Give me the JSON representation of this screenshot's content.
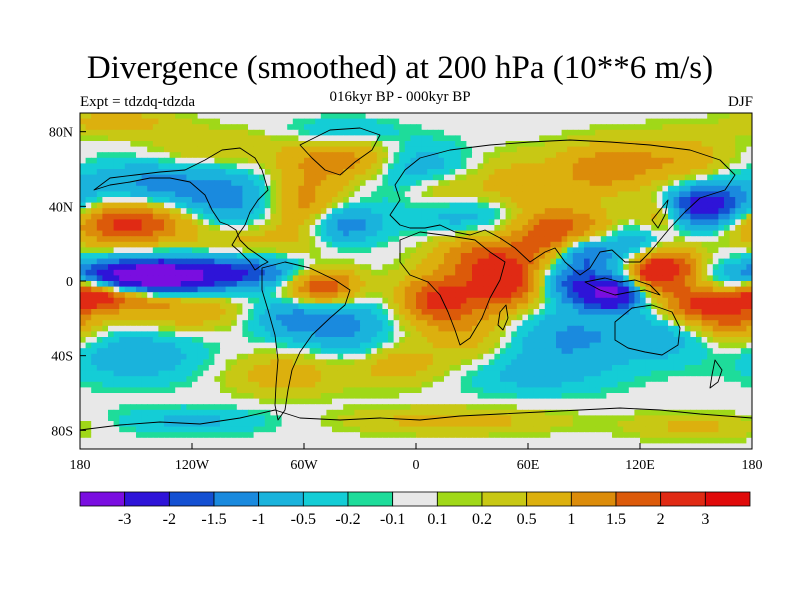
{
  "chart_data": {
    "type": "heatmap",
    "title": "Divergence (smoothed) at 200 hPa (10**6 m/s)",
    "subtitle": "016kyr BP - 000kyr BP",
    "left_label": "Expt = tdzdq-tdzda",
    "right_label": "DJF",
    "x_axis": {
      "range": [
        -180,
        180
      ],
      "ticks": [
        {
          "value": -180,
          "label": "180"
        },
        {
          "value": -120,
          "label": "120W"
        },
        {
          "value": -60,
          "label": "60W"
        },
        {
          "value": 0,
          "label": "0"
        },
        {
          "value": 60,
          "label": "60E"
        },
        {
          "value": 120,
          "label": "120E"
        },
        {
          "value": 180,
          "label": "180"
        }
      ]
    },
    "y_axis": {
      "range": [
        -90,
        90
      ],
      "ticks": [
        {
          "value": 80,
          "label": "80N"
        },
        {
          "value": 40,
          "label": "40N"
        },
        {
          "value": 0,
          "label": "0"
        },
        {
          "value": -40,
          "label": "40S"
        },
        {
          "value": -80,
          "label": "80S"
        }
      ]
    },
    "colorbar": {
      "colors": [
        "#7a0ee0",
        "#2e14d8",
        "#1450d2",
        "#1a8ade",
        "#1ab3dc",
        "#14cdd6",
        "#1edc9a",
        "#e8e8e8",
        "#a0d818",
        "#c8c814",
        "#dcb00e",
        "#dc8c0a",
        "#dc5a0a",
        "#e02a14",
        "#e00a0a"
      ],
      "labels": [
        "-3",
        "-2",
        "-1.5",
        "-1",
        "-0.5",
        "-0.2",
        "-0.1",
        "0.1",
        "0.2",
        "0.5",
        "1",
        "1.5",
        "2",
        "3"
      ]
    },
    "features": [
      {
        "lon": -150,
        "lat": 0,
        "value": -3.2,
        "sx": 28,
        "sy": 6
      },
      {
        "lon": -135,
        "lat": 5,
        "value": -2.0,
        "sx": 30,
        "sy": 7
      },
      {
        "lon": -85,
        "lat": 5,
        "value": -1.2,
        "sx": 22,
        "sy": 6
      },
      {
        "lon": -160,
        "lat": -7,
        "value": 2.2,
        "sx": 18,
        "sy": 6
      },
      {
        "lon": -175,
        "lat": -5,
        "value": 1.8,
        "sx": 10,
        "sy": 6
      },
      {
        "lon": -125,
        "lat": -15,
        "value": 1.0,
        "sx": 22,
        "sy": 8
      },
      {
        "lon": -155,
        "lat": 32,
        "value": 2.4,
        "sx": 25,
        "sy": 9
      },
      {
        "lon": -140,
        "lat": 50,
        "value": -1.3,
        "sx": 30,
        "sy": 10
      },
      {
        "lon": -100,
        "lat": 40,
        "value": -1.0,
        "sx": 18,
        "sy": 12
      },
      {
        "lon": -95,
        "lat": 22,
        "value": 0.8,
        "sx": 18,
        "sy": 7
      },
      {
        "lon": -60,
        "lat": 40,
        "value": 1.3,
        "sx": 14,
        "sy": 14
      },
      {
        "lon": -40,
        "lat": 30,
        "value": -1.5,
        "sx": 14,
        "sy": 7
      },
      {
        "lon": -50,
        "lat": -3,
        "value": 2.2,
        "sx": 14,
        "sy": 7
      },
      {
        "lon": -65,
        "lat": -20,
        "value": -1.2,
        "sx": 16,
        "sy": 8
      },
      {
        "lon": -35,
        "lat": -25,
        "value": -1.0,
        "sx": 16,
        "sy": 12
      },
      {
        "lon": -70,
        "lat": -50,
        "value": 0.8,
        "sx": 22,
        "sy": 8
      },
      {
        "lon": -40,
        "lat": 65,
        "value": 1.2,
        "sx": 20,
        "sy": 8
      },
      {
        "lon": -110,
        "lat": 70,
        "value": 0.6,
        "sx": 25,
        "sy": 8
      },
      {
        "lon": -160,
        "lat": 85,
        "value": 0.8,
        "sx": 20,
        "sy": 5
      },
      {
        "lon": -40,
        "lat": 80,
        "value": -0.6,
        "sx": 20,
        "sy": 5
      },
      {
        "lon": 5,
        "lat": 58,
        "value": -1.2,
        "sx": 18,
        "sy": 10
      },
      {
        "lon": 10,
        "lat": 50,
        "value": 1.0,
        "sx": 14,
        "sy": 8
      },
      {
        "lon": 50,
        "lat": 50,
        "value": 0.8,
        "sx": 22,
        "sy": 12
      },
      {
        "lon": 30,
        "lat": 35,
        "value": -0.9,
        "sx": 25,
        "sy": 8
      },
      {
        "lon": 30,
        "lat": 15,
        "value": 1.2,
        "sx": 16,
        "sy": 8
      },
      {
        "lon": 70,
        "lat": 25,
        "value": 1.8,
        "sx": 15,
        "sy": 10
      },
      {
        "lon": 10,
        "lat": -10,
        "value": 2.0,
        "sx": 14,
        "sy": 10
      },
      {
        "lon": 30,
        "lat": -25,
        "value": 0.8,
        "sx": 15,
        "sy": 14
      },
      {
        "lon": 50,
        "lat": 0,
        "value": 2.8,
        "sx": 16,
        "sy": 10
      },
      {
        "lon": 80,
        "lat": 0,
        "value": -1.8,
        "sx": 16,
        "sy": 8
      },
      {
        "lon": 105,
        "lat": -7,
        "value": -3.0,
        "sx": 12,
        "sy": 6
      },
      {
        "lon": 90,
        "lat": 15,
        "value": -1.5,
        "sx": 10,
        "sy": 6
      },
      {
        "lon": 125,
        "lat": 5,
        "value": 2.5,
        "sx": 9,
        "sy": 8
      },
      {
        "lon": 140,
        "lat": 8,
        "value": 1.8,
        "sx": 10,
        "sy": 8
      },
      {
        "lon": 95,
        "lat": 30,
        "value": 0.8,
        "sx": 15,
        "sy": 7
      },
      {
        "lon": 120,
        "lat": 20,
        "value": -1.2,
        "sx": 14,
        "sy": 10
      },
      {
        "lon": 155,
        "lat": 40,
        "value": -2.8,
        "sx": 18,
        "sy": 8
      },
      {
        "lon": 130,
        "lat": 35,
        "value": 1.5,
        "sx": 10,
        "sy": 8
      },
      {
        "lon": 150,
        "lat": -12,
        "value": 1.8,
        "sx": 14,
        "sy": 8
      },
      {
        "lon": 170,
        "lat": -20,
        "value": 1.5,
        "sx": 14,
        "sy": 10
      },
      {
        "lon": 100,
        "lat": 60,
        "value": 1.2,
        "sx": 18,
        "sy": 10
      },
      {
        "lon": 140,
        "lat": 65,
        "value": 0.9,
        "sx": 20,
        "sy": 10
      },
      {
        "lon": 130,
        "lat": -30,
        "value": -0.8,
        "sx": 22,
        "sy": 10
      },
      {
        "lon": 80,
        "lat": -30,
        "value": -1.0,
        "sx": 22,
        "sy": 12
      },
      {
        "lon": 60,
        "lat": -50,
        "value": -0.6,
        "sx": 30,
        "sy": 8
      },
      {
        "lon": -150,
        "lat": -40,
        "value": -0.9,
        "sx": 25,
        "sy": 10
      },
      {
        "lon": -10,
        "lat": -45,
        "value": 0.8,
        "sx": 18,
        "sy": 8
      },
      {
        "lon": 20,
        "lat": -75,
        "value": 0.7,
        "sx": 40,
        "sy": 5
      },
      {
        "lon": -120,
        "lat": -75,
        "value": -0.6,
        "sx": 30,
        "sy": 5
      },
      {
        "lon": 150,
        "lat": -78,
        "value": 0.6,
        "sx": 25,
        "sy": 5
      }
    ]
  }
}
